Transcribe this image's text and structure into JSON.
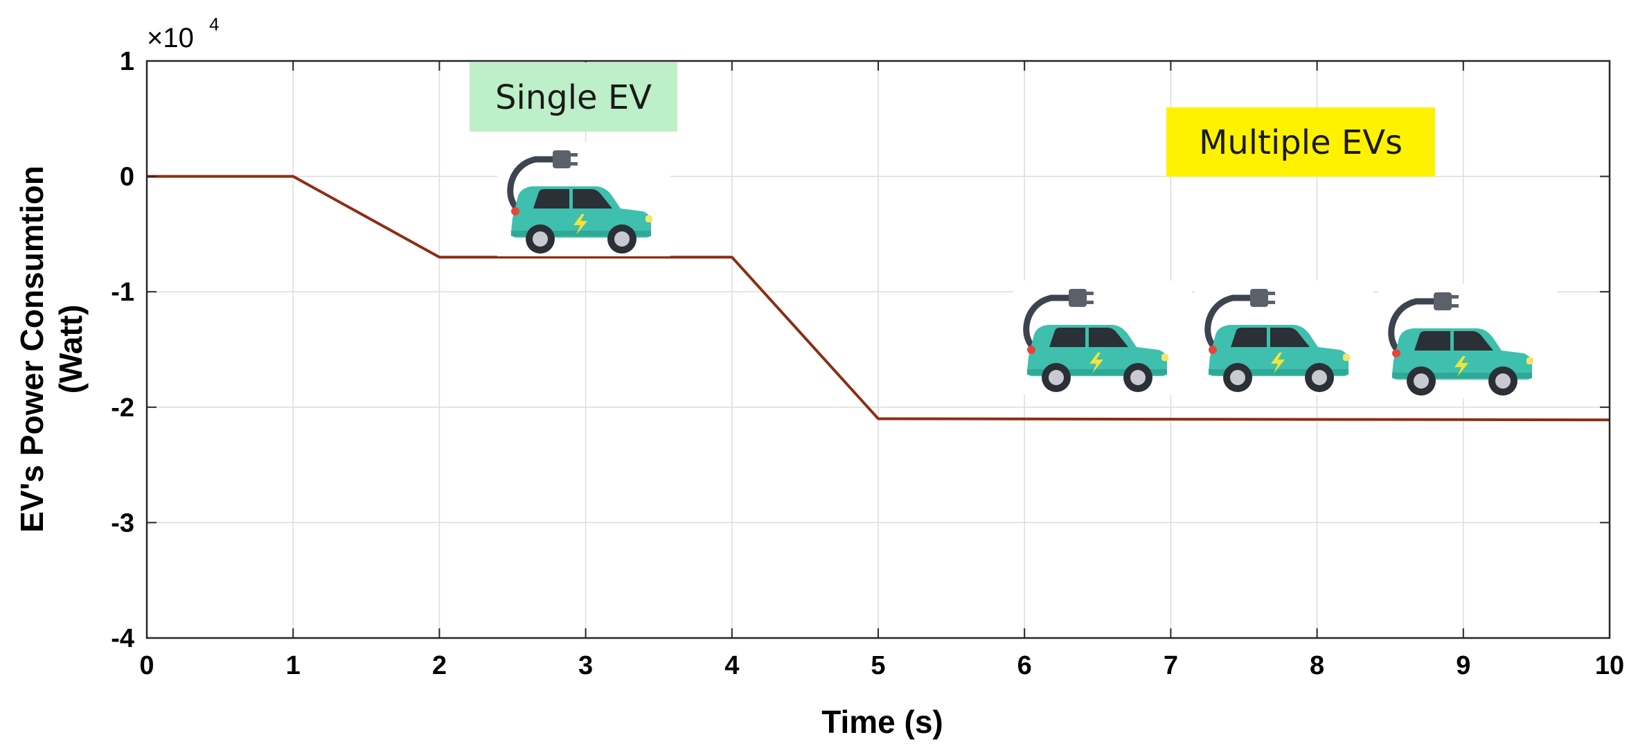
{
  "chart_data": {
    "type": "line",
    "title": "",
    "xlabel": "Time (s)",
    "ylabel_line1": "EV's Power Consumtion",
    "ylabel_line2": "(Watt)",
    "y_multiplier_base": "×10",
    "y_multiplier_exponent": "4",
    "xlim": [
      0,
      10
    ],
    "ylim": [
      -40000,
      10000
    ],
    "xticks": [
      0,
      1,
      2,
      3,
      4,
      5,
      6,
      7,
      8,
      9,
      10
    ],
    "xtick_labels": [
      "0",
      "1",
      "2",
      "3",
      "4",
      "5",
      "6",
      "7",
      "8",
      "9",
      "10"
    ],
    "yticks": [
      -40000,
      -30000,
      -20000,
      -10000,
      0,
      10000
    ],
    "ytick_labels": [
      "-4",
      "-3",
      "-2",
      "-1",
      "0",
      "1"
    ],
    "grid": true,
    "series": [
      {
        "color": "#8B2E14",
        "x": [
          0,
          1,
          2,
          4,
          5,
          10
        ],
        "y": [
          0,
          0,
          -7000,
          -7000,
          -21000,
          -21100
        ]
      }
    ],
    "annotations": [
      {
        "text": "Single EV",
        "background": "#BDEFC8"
      },
      {
        "text": "Multiple EVs",
        "background": "#FFF200"
      }
    ],
    "icons": [
      "ev-charging-car-icon",
      "ev-charging-car-icon",
      "ev-charging-car-icon",
      "ev-charging-car-icon"
    ]
  }
}
